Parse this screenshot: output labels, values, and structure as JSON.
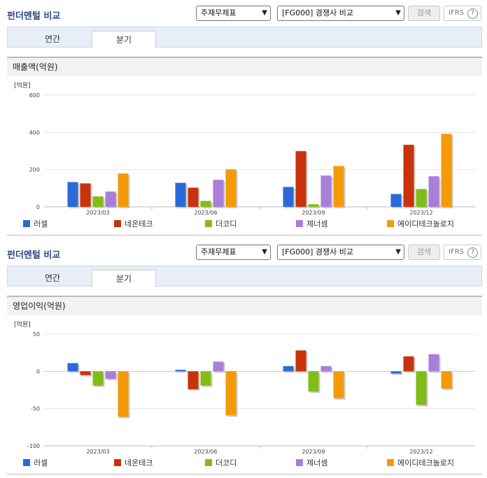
{
  "panels": [
    {
      "title": "펀더멘털 비교",
      "select1": "주재무제표",
      "select2": "[FG000] 경쟁사 비교",
      "search_label": "검색",
      "ifrs_label": "IFRS",
      "help_label": "?",
      "tabs": [
        {
          "label": "연간"
        },
        {
          "label": "분기"
        }
      ],
      "active_tab": 1,
      "section_title": "매출액(억원)"
    },
    {
      "title": "펀더멘털 비교",
      "select1": "주재무제표",
      "select2": "[FG000] 경쟁사 비교",
      "search_label": "검색",
      "ifrs_label": "IFRS",
      "help_label": "?",
      "tabs": [
        {
          "label": "연간"
        },
        {
          "label": "분기"
        }
      ],
      "active_tab": 1,
      "section_title": "영업이익(억원)"
    }
  ],
  "chart_data": [
    {
      "type": "bar",
      "ylabel": "[억원]",
      "ylim": [
        0,
        600
      ],
      "yticks": [
        0,
        200,
        400,
        600
      ],
      "categories": [
        "2023/03",
        "2023/06",
        "2023/09",
        "2023/12"
      ],
      "series": [
        {
          "name": "러셀",
          "color": "#2a6ad8",
          "values": [
            133,
            129,
            107,
            69
          ]
        },
        {
          "name": "네온테크",
          "color": "#c8320c",
          "values": [
            126,
            103,
            299,
            333
          ]
        },
        {
          "name": "더코디",
          "color": "#82bc17",
          "values": [
            56,
            32,
            14,
            96
          ]
        },
        {
          "name": "제너셈",
          "color": "#a87fd8",
          "values": [
            82,
            145,
            168,
            164
          ]
        },
        {
          "name": "에이디테크놀로지",
          "color": "#f59a06",
          "values": [
            179,
            201,
            219,
            392
          ]
        }
      ],
      "legend_position": "bottom",
      "grid": true
    },
    {
      "type": "bar",
      "ylabel": "[억원]",
      "ylim": [
        -100,
        50
      ],
      "yticks": [
        -100,
        -50,
        0,
        50
      ],
      "categories": [
        "2023/03",
        "2023/06",
        "2023/09",
        "2023/12"
      ],
      "series": [
        {
          "name": "러셀",
          "color": "#2a6ad8",
          "values": [
            11,
            2,
            7,
            -3
          ]
        },
        {
          "name": "네온테크",
          "color": "#c8320c",
          "values": [
            -5,
            -24,
            28,
            20
          ]
        },
        {
          "name": "더코디",
          "color": "#82bc17",
          "values": [
            -19,
            -19,
            -27,
            -45
          ]
        },
        {
          "name": "제너셈",
          "color": "#a87fd8",
          "values": [
            -10,
            13,
            7,
            23
          ]
        },
        {
          "name": "에이디테크놀로지",
          "color": "#f59a06",
          "values": [
            -61,
            -59,
            -36,
            -23
          ]
        }
      ],
      "legend_position": "bottom",
      "grid": true
    }
  ]
}
